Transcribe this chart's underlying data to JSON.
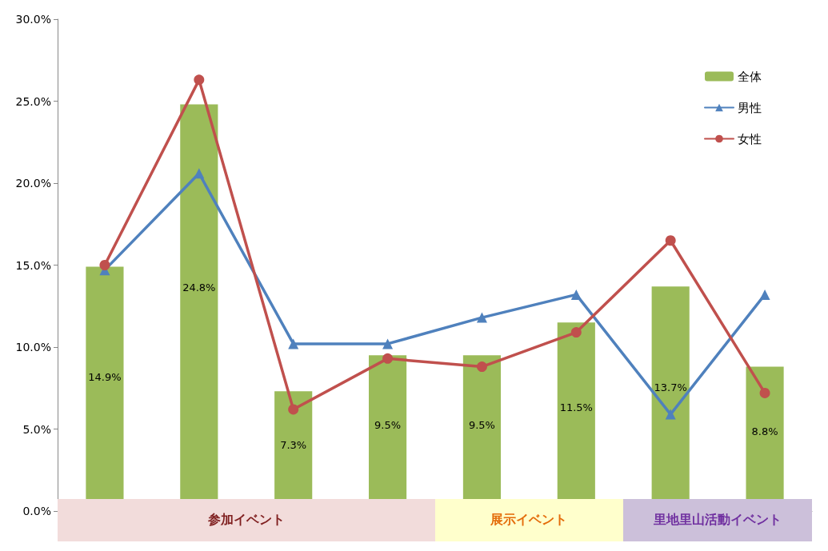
{
  "chart_data": {
    "type": "bar",
    "categories": [
      null,
      null,
      null,
      null,
      null,
      null,
      null,
      null
    ],
    "series": [
      {
        "name": "全体",
        "color": "#9bbb59",
        "values": [
          14.9,
          24.8,
          7.3,
          9.5,
          9.5,
          11.5,
          13.7,
          8.8
        ],
        "value_labels": [
          "14.9%",
          "24.8%",
          "7.3%",
          "9.5%",
          "9.5%",
          "11.5%",
          "13.7%",
          "8.8%"
        ]
      },
      {
        "name": "男性",
        "type": "line",
        "color": "#4f81bd",
        "marker": "triangle",
        "values": [
          14.7,
          20.6,
          10.2,
          10.2,
          11.8,
          13.2,
          5.9,
          13.2
        ]
      },
      {
        "name": "女性",
        "type": "line",
        "color": "#c0504d",
        "marker": "circle",
        "values": [
          15.0,
          26.3,
          6.2,
          9.3,
          8.8,
          10.9,
          16.5,
          7.2
        ]
      }
    ],
    "ylim": [
      0,
      30
    ],
    "yticks": [
      {
        "value": 0,
        "label": "0.0%"
      },
      {
        "value": 5,
        "label": "5.0%"
      },
      {
        "value": 10,
        "label": "10.0%"
      },
      {
        "value": 15,
        "label": "15.0%"
      },
      {
        "value": 20,
        "label": "20.0%"
      },
      {
        "value": 25,
        "label": "25.0%"
      },
      {
        "value": 30,
        "label": "30.0%"
      }
    ],
    "annotations": [
      "参加イベント",
      "展示イベント",
      "里地里山活動イベント"
    ],
    "legend": "top right",
    "grid": false,
    "line_style": "solid"
  }
}
